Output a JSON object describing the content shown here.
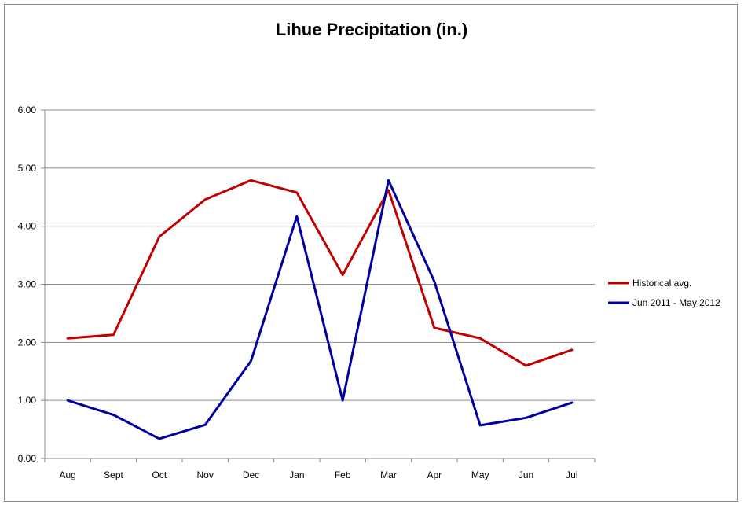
{
  "chart_data": {
    "type": "line",
    "title": "Lihue Precipitation (in.)",
    "xlabel": "",
    "ylabel": "",
    "categories": [
      "Aug",
      "Sept",
      "Oct",
      "Nov",
      "Dec",
      "Jan",
      "Feb",
      "Mar",
      "Apr",
      "May",
      "Jun",
      "Jul"
    ],
    "ylim": [
      0,
      6
    ],
    "yticks": [
      "0.00",
      "1.00",
      "2.00",
      "3.00",
      "4.00",
      "5.00",
      "6.00"
    ],
    "grid": true,
    "legend_position": "right",
    "series": [
      {
        "name": "Historical avg.",
        "color": "#c00000",
        "values": [
          2.07,
          2.13,
          3.82,
          4.46,
          4.79,
          4.58,
          3.16,
          4.62,
          2.25,
          2.07,
          1.6,
          1.87
        ]
      },
      {
        "name": "Jun 2011 - May 2012",
        "color": "#0000a0",
        "values": [
          1.0,
          0.75,
          0.34,
          0.58,
          1.68,
          4.17,
          1.0,
          4.79,
          3.05,
          0.57,
          0.7,
          0.96
        ]
      }
    ]
  }
}
